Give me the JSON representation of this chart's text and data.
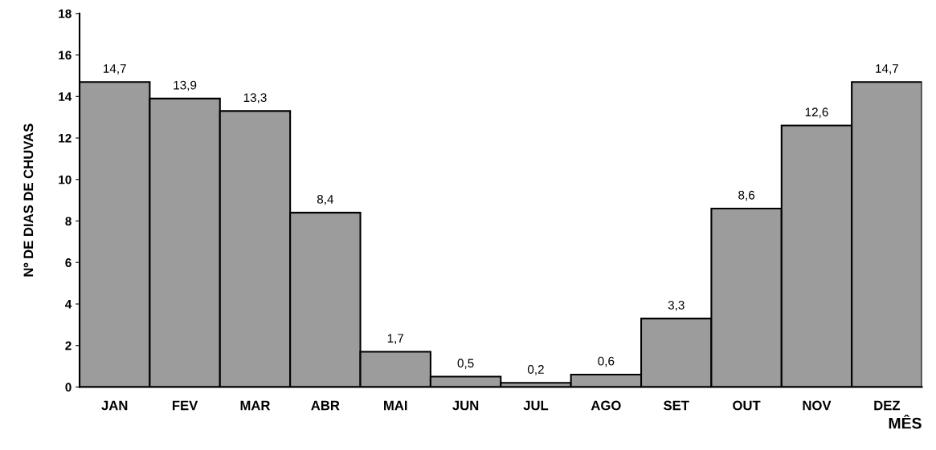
{
  "chart_data": {
    "type": "bar",
    "xlabel": "MÊS",
    "ylabel": "Nº DE DIAS DE CHUVAS",
    "categories": [
      "JAN",
      "FEV",
      "MAR",
      "ABR",
      "MAI",
      "JUN",
      "JUL",
      "AGO",
      "SET",
      "OUT",
      "NOV",
      "DEZ"
    ],
    "values": [
      14.7,
      13.9,
      13.3,
      8.4,
      1.7,
      0.5,
      0.2,
      0.6,
      3.3,
      8.6,
      12.6,
      14.7
    ],
    "value_labels": [
      "14,7",
      "13,9",
      "13,3",
      "8,4",
      "1,7",
      "0,5",
      "0,2",
      "0,6",
      "3,3",
      "8,6",
      "12,6",
      "14,7"
    ],
    "color": "#9c9c9c",
    "ylim": [
      0,
      18
    ],
    "yticks": [
      0,
      2,
      4,
      6,
      8,
      10,
      12,
      14,
      16,
      18
    ],
    "grid": false,
    "legend": false
  }
}
